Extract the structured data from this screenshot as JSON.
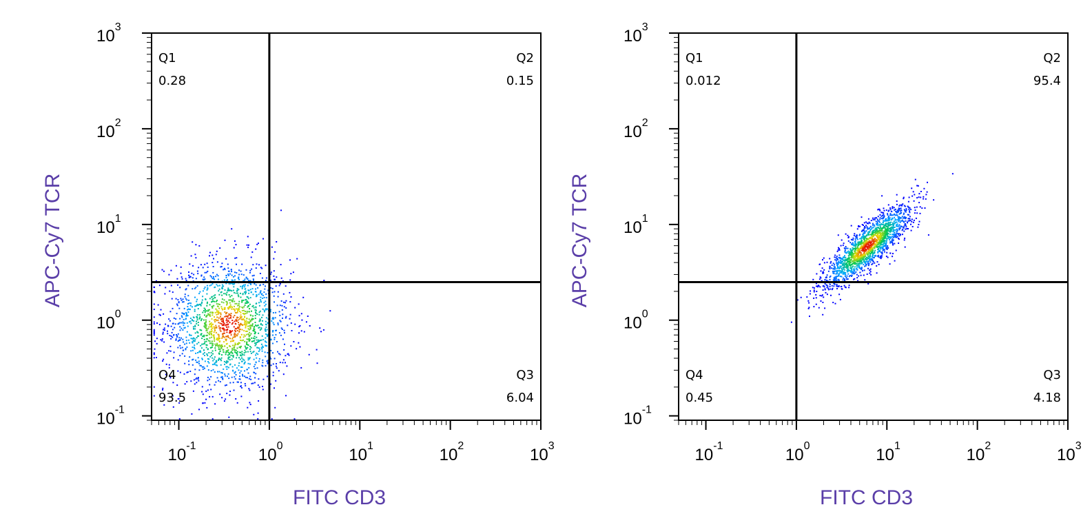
{
  "chart_data": [
    {
      "type": "scatter",
      "xlabel": "FITC CD3",
      "ylabel": "APC-Cy7 TCR",
      "x_scale": "log",
      "y_scale": "log",
      "xlim": [
        0.05,
        1000
      ],
      "ylim": [
        0.09,
        1000
      ],
      "x_ticks": [
        "10^-1",
        "10^0",
        "10^1",
        "10^2",
        "10^3"
      ],
      "y_ticks": [
        "10^-1",
        "10^0",
        "10^1",
        "10^2",
        "10^3"
      ],
      "gate": {
        "x": 1.0,
        "y": 2.5
      },
      "quadrants": [
        {
          "name": "Q1",
          "value": "0.28"
        },
        {
          "name": "Q2",
          "value": "0.15"
        },
        {
          "name": "Q3",
          "value": "6.04"
        },
        {
          "name": "Q4",
          "value": "93.5"
        }
      ],
      "population": {
        "center_x": 0.35,
        "center_y": 0.9,
        "spread_x": 0.35,
        "spread_y": 0.35
      }
    },
    {
      "type": "scatter",
      "xlabel": "FITC CD3",
      "ylabel": "APC-Cy7 TCR",
      "x_scale": "log",
      "y_scale": "log",
      "xlim": [
        0.05,
        1000
      ],
      "ylim": [
        0.09,
        1000
      ],
      "x_ticks": [
        "10^-1",
        "10^0",
        "10^1",
        "10^2",
        "10^3"
      ],
      "y_ticks": [
        "10^-1",
        "10^0",
        "10^1",
        "10^2",
        "10^3"
      ],
      "gate": {
        "x": 1.0,
        "y": 2.5
      },
      "quadrants": [
        {
          "name": "Q1",
          "value": "0.012"
        },
        {
          "name": "Q2",
          "value": "95.4"
        },
        {
          "name": "Q3",
          "value": "4.18"
        },
        {
          "name": "Q4",
          "value": "0.45"
        }
      ],
      "population": {
        "center_x": 6.0,
        "center_y": 6.0,
        "spread_x": 0.25,
        "spread_y": 0.22,
        "correlation": 0.85
      }
    }
  ]
}
